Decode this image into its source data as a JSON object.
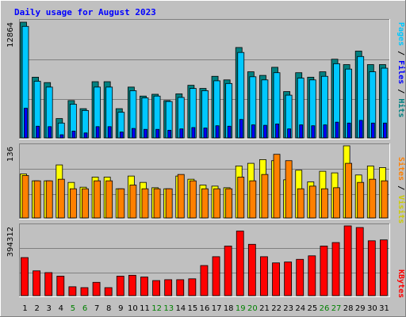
{
  "chart_data": [
    {
      "type": "bar",
      "panel": "hits-files-pages",
      "title": "Daily usage for August 2023",
      "categories": [
        "1",
        "2",
        "3",
        "4",
        "5",
        "6",
        "7",
        "8",
        "9",
        "10",
        "11",
        "12",
        "13",
        "14",
        "15",
        "16",
        "17",
        "18",
        "19",
        "20",
        "21",
        "22",
        "23",
        "24",
        "25",
        "26",
        "27",
        "28",
        "29",
        "30",
        "31"
      ],
      "weekend_categories": [
        "5",
        "6",
        "12",
        "13",
        "19",
        "20",
        "26",
        "27"
      ],
      "y_tick_label": "12864",
      "ylim": [
        0,
        12864
      ],
      "series": [
        {
          "name": "Hits",
          "color": "#008080",
          "values": [
            12864,
            6750,
            6150,
            2150,
            4150,
            3250,
            6250,
            6250,
            3250,
            5650,
            4650,
            4850,
            4150,
            4900,
            5850,
            5500,
            6850,
            6450,
            10050,
            7350,
            6950,
            7850,
            5150,
            7250,
            6750,
            7350,
            8750,
            8150,
            9650,
            8150,
            8150
          ]
        },
        {
          "name": "Files",
          "color": "#00c8ff",
          "values": [
            12400,
            6300,
            5650,
            1650,
            3750,
            3050,
            5650,
            5650,
            2850,
            5250,
            4450,
            4650,
            4050,
            4500,
            5500,
            5250,
            6350,
            6050,
            9500,
            6800,
            6450,
            7250,
            4750,
            6650,
            6450,
            6850,
            8250,
            7650,
            9050,
            7350,
            7750
          ]
        },
        {
          "name": "Pages",
          "color": "#0000ff",
          "values": [
            3300,
            1300,
            1250,
            350,
            750,
            550,
            1250,
            1250,
            650,
            1050,
            950,
            950,
            850,
            1000,
            1150,
            1100,
            1350,
            1300,
            2050,
            1450,
            1400,
            1550,
            1000,
            1450,
            1350,
            1450,
            1750,
            1650,
            1950,
            1650,
            1650
          ]
        }
      ]
    },
    {
      "type": "bar",
      "panel": "visits-sites",
      "categories": [
        "1",
        "2",
        "3",
        "4",
        "5",
        "6",
        "7",
        "8",
        "9",
        "10",
        "11",
        "12",
        "13",
        "14",
        "15",
        "16",
        "17",
        "18",
        "19",
        "20",
        "21",
        "22",
        "23",
        "24",
        "25",
        "26",
        "27",
        "28",
        "29",
        "30",
        "31"
      ],
      "y_tick_label": "136",
      "ylim": [
        0,
        136
      ],
      "series": [
        {
          "name": "Visits",
          "color": "#ffff00",
          "values": [
            83,
            70,
            70,
            100,
            67,
            58,
            77,
            77,
            55,
            79,
            67,
            57,
            55,
            79,
            73,
            62,
            60,
            57,
            98,
            103,
            110,
            108,
            72,
            90,
            68,
            88,
            85,
            136,
            81,
            98,
            95
          ]
        },
        {
          "name": "Sites",
          "color": "#ff8000",
          "values": [
            80,
            70,
            70,
            73,
            55,
            55,
            70,
            70,
            55,
            62,
            55,
            55,
            55,
            82,
            70,
            55,
            55,
            55,
            77,
            70,
            82,
            120,
            108,
            55,
            60,
            55,
            57,
            103,
            67,
            73,
            70
          ]
        }
      ]
    },
    {
      "type": "bar",
      "panel": "kbytes",
      "categories": [
        "1",
        "2",
        "3",
        "4",
        "5",
        "6",
        "7",
        "8",
        "9",
        "10",
        "11",
        "12",
        "13",
        "14",
        "15",
        "16",
        "17",
        "18",
        "19",
        "20",
        "21",
        "22",
        "23",
        "24",
        "25",
        "26",
        "27",
        "28",
        "29",
        "30",
        "31"
      ],
      "y_tick_label": "394312",
      "ylim": [
        0,
        394312
      ],
      "series": [
        {
          "name": "KBytes",
          "color": "#ff0000",
          "values": [
            215000,
            140000,
            130000,
            110000,
            50000,
            45000,
            75000,
            45000,
            110000,
            115000,
            105000,
            85000,
            90000,
            90000,
            95000,
            170000,
            220000,
            280000,
            365000,
            290000,
            220000,
            185000,
            190000,
            205000,
            225000,
            280000,
            300000,
            394312,
            385000,
            310000,
            315000
          ]
        }
      ]
    }
  ]
}
